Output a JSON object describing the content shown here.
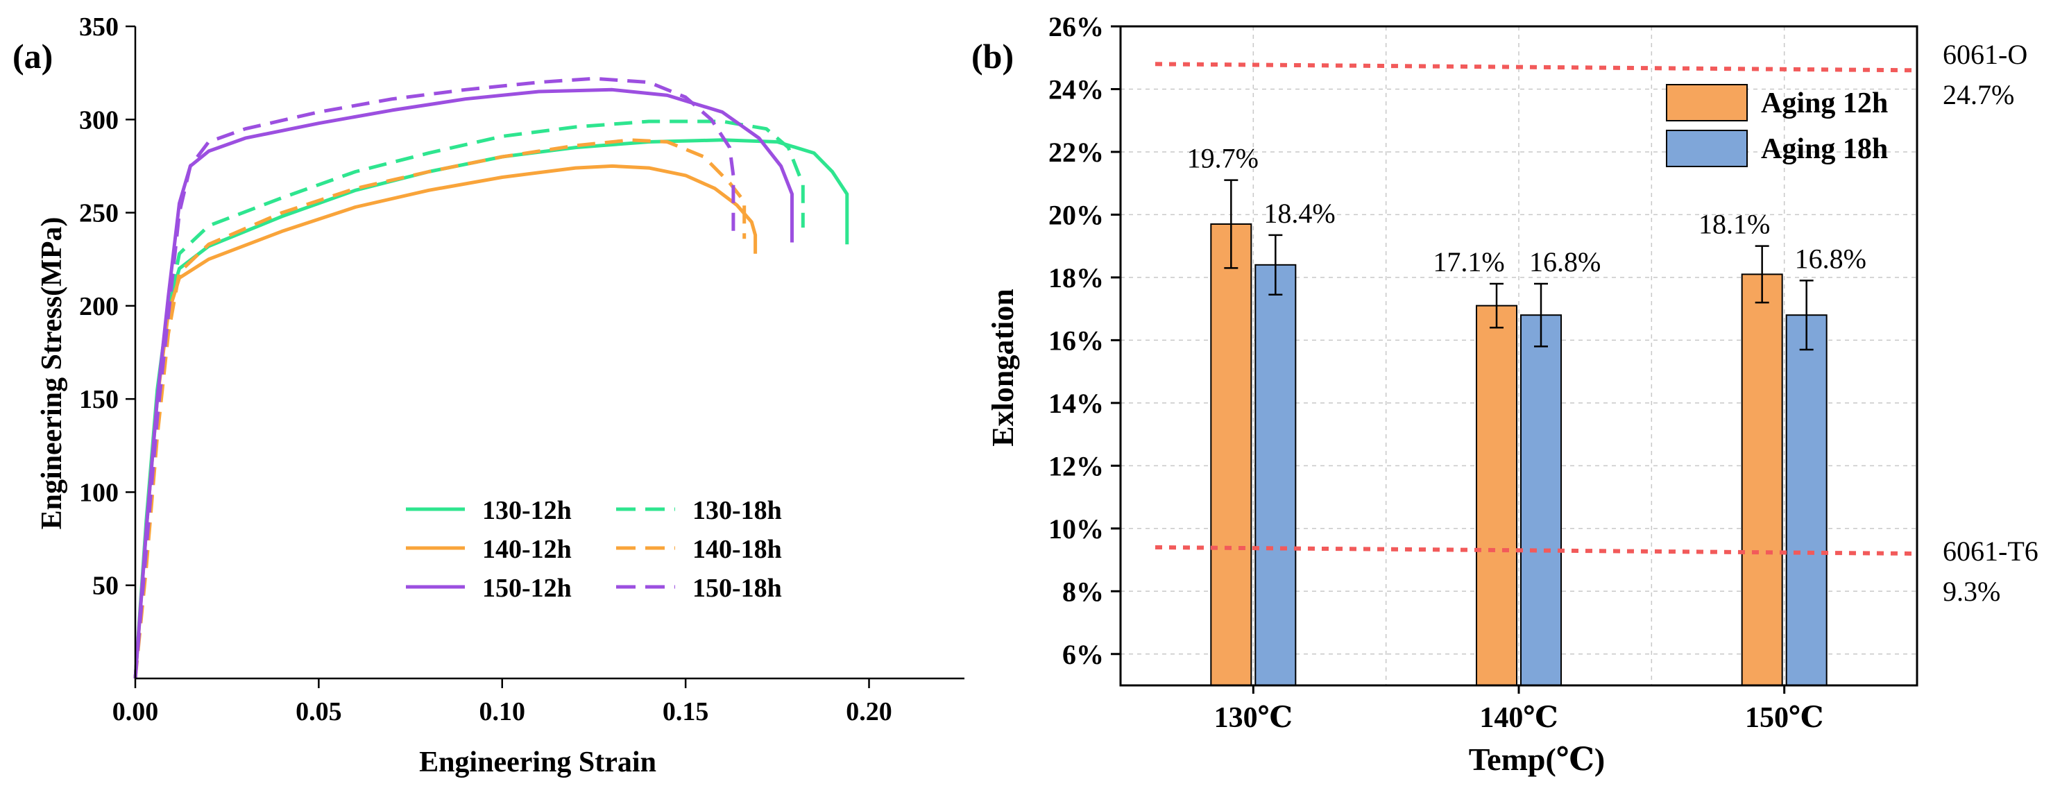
{
  "chart_data": [
    {
      "panel_label": "(a)",
      "type": "line",
      "title": "",
      "xlabel": "Engineering Strain",
      "ylabel": "Engineering Stress(MPa)",
      "xlim": [
        0,
        0.226
      ],
      "ylim": [
        0,
        350
      ],
      "xticks": [
        0.0,
        0.05,
        0.1,
        0.15,
        0.2
      ],
      "xtick_labels": [
        "0.00",
        "0.05",
        "0.10",
        "0.15",
        "0.20"
      ],
      "yticks": [
        50,
        100,
        150,
        200,
        250,
        300,
        350
      ],
      "ytick_labels": [
        "50",
        "100",
        "150",
        "200",
        "250",
        "300",
        "350"
      ],
      "legend_position": "bottom-right",
      "series": [
        {
          "name": "130-12h",
          "color": "#2ee58f",
          "dash": "solid",
          "x": [
            0,
            0.003,
            0.006,
            0.009,
            0.012,
            0.02,
            0.04,
            0.06,
            0.08,
            0.1,
            0.12,
            0.14,
            0.16,
            0.175,
            0.185,
            0.19,
            0.194,
            0.194
          ],
          "y": [
            0,
            85,
            155,
            200,
            220,
            232,
            248,
            262,
            272,
            280,
            285,
            288,
            289,
            288,
            282,
            272,
            260,
            233
          ]
        },
        {
          "name": "130-18h",
          "color": "#2ee58f",
          "dash": "dashed",
          "x": [
            0,
            0.003,
            0.006,
            0.009,
            0.012,
            0.02,
            0.04,
            0.06,
            0.08,
            0.1,
            0.12,
            0.14,
            0.16,
            0.172,
            0.178,
            0.182,
            0.182
          ],
          "y": [
            0,
            80,
            150,
            198,
            228,
            243,
            258,
            272,
            282,
            291,
            296,
            299,
            299,
            295,
            285,
            265,
            242
          ]
        },
        {
          "name": "140-12h",
          "color": "#f9a43a",
          "dash": "solid",
          "x": [
            0,
            0.003,
            0.006,
            0.009,
            0.012,
            0.02,
            0.04,
            0.06,
            0.08,
            0.1,
            0.12,
            0.13,
            0.14,
            0.15,
            0.158,
            0.164,
            0.168,
            0.169,
            0.169
          ],
          "y": [
            0,
            80,
            150,
            196,
            215,
            225,
            240,
            253,
            262,
            269,
            274,
            275,
            274,
            270,
            263,
            254,
            245,
            238,
            228
          ]
        },
        {
          "name": "140-18h",
          "color": "#f9a43a",
          "dash": "dashed",
          "x": [
            0,
            0.003,
            0.006,
            0.009,
            0.012,
            0.02,
            0.04,
            0.06,
            0.08,
            0.1,
            0.12,
            0.135,
            0.145,
            0.155,
            0.162,
            0.166,
            0.166
          ],
          "y": [
            0,
            60,
            130,
            185,
            218,
            233,
            250,
            263,
            272,
            280,
            286,
            289,
            288,
            280,
            266,
            256,
            236
          ]
        },
        {
          "name": "150-12h",
          "color": "#9c4fe0",
          "dash": "solid",
          "x": [
            0,
            0.003,
            0.006,
            0.009,
            0.012,
            0.015,
            0.02,
            0.03,
            0.05,
            0.07,
            0.09,
            0.11,
            0.13,
            0.145,
            0.16,
            0.17,
            0.176,
            0.179,
            0.179
          ],
          "y": [
            0,
            80,
            150,
            205,
            255,
            275,
            283,
            290,
            298,
            305,
            311,
            315,
            316,
            313,
            304,
            290,
            275,
            260,
            234
          ]
        },
        {
          "name": "150-18h",
          "color": "#9c4fe0",
          "dash": "dashed",
          "x": [
            0,
            0.003,
            0.006,
            0.009,
            0.012,
            0.015,
            0.02,
            0.03,
            0.05,
            0.07,
            0.09,
            0.11,
            0.125,
            0.14,
            0.15,
            0.157,
            0.162,
            0.163,
            0.163
          ],
          "y": [
            0,
            70,
            140,
            195,
            250,
            275,
            288,
            295,
            304,
            311,
            316,
            320,
            322,
            320,
            312,
            300,
            285,
            270,
            238
          ]
        }
      ]
    },
    {
      "panel_label": "(b)",
      "type": "bar",
      "title": "",
      "xlabel": "Temp(℃)",
      "ylabel": "Exlongation",
      "categories": [
        "130℃",
        "140℃",
        "150℃"
      ],
      "ylim": [
        5,
        26
      ],
      "yticks": [
        6,
        8,
        10,
        12,
        14,
        16,
        18,
        20,
        22,
        24,
        26
      ],
      "ytick_labels": [
        "6%",
        "8%",
        "10%",
        "12%",
        "14%",
        "16%",
        "18%",
        "20%",
        "22%",
        "24%",
        "26%"
      ],
      "grid": true,
      "legend_position": "top-right",
      "series": [
        {
          "name": "Aging 12h",
          "color": "#f6a55c",
          "values": [
            19.7,
            17.1,
            18.1
          ],
          "errors": [
            1.4,
            0.7,
            0.9
          ],
          "labels": [
            "19.7%",
            "17.1%",
            "18.1%"
          ]
        },
        {
          "name": "Aging 18h",
          "color": "#7fa6d9",
          "values": [
            18.4,
            16.8,
            16.8
          ],
          "errors": [
            0.95,
            1.0,
            1.1
          ],
          "labels": [
            "18.4%",
            "16.8%",
            "16.8%"
          ]
        }
      ],
      "reference_lines": [
        {
          "name": "6061-O",
          "value_label": "24.7%",
          "y_start": 24.8,
          "y_end": 24.6,
          "color": "#f25a5a"
        },
        {
          "name": "6061-T6",
          "value_label": "9.3%",
          "y_start": 9.4,
          "y_end": 9.2,
          "color": "#f25a5a"
        }
      ]
    }
  ]
}
